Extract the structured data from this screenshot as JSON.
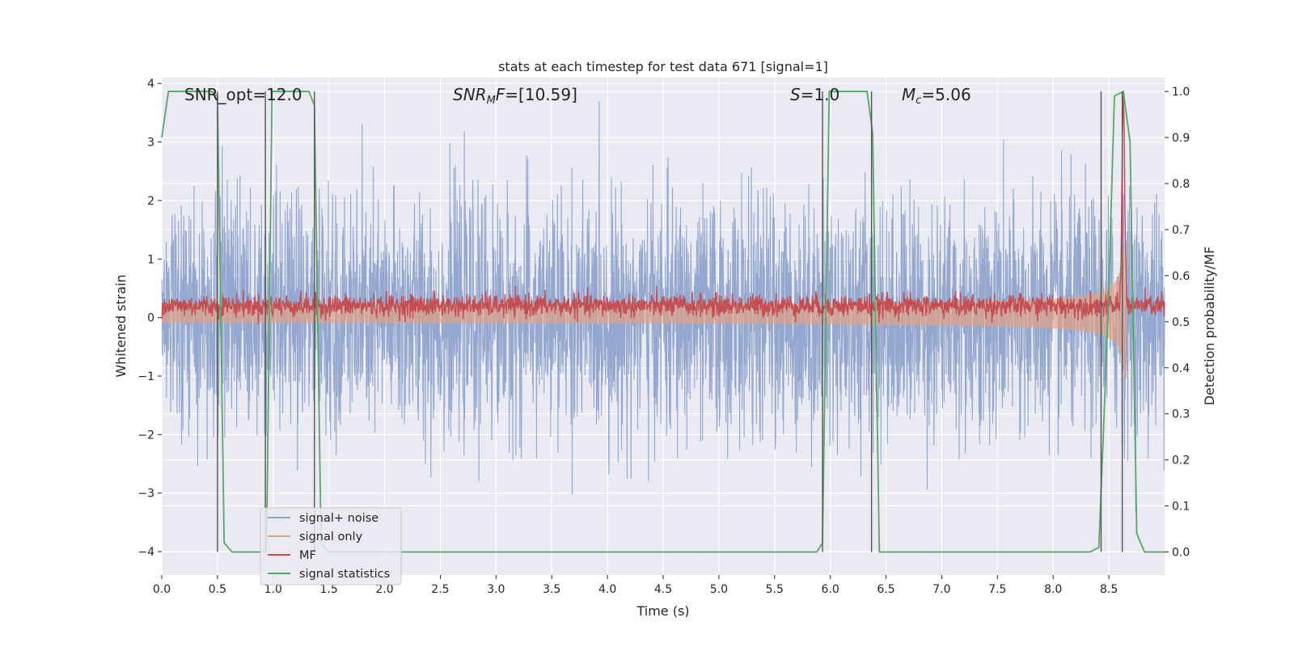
{
  "chart_data": {
    "type": "line",
    "title": "stats at each timestep for test data 671 [signal=1]",
    "xlabel": "Time (s)",
    "ylabel_left": "Whitened strain",
    "ylabel_right": "Detection probability/MF",
    "xlim": [
      0.0,
      9.0
    ],
    "ylim_left": [
      -4.4,
      4.1
    ],
    "ylim_right": [
      -0.05,
      1.03
    ],
    "x_ticks": [
      "0.0",
      "0.5",
      "1.0",
      "1.5",
      "2.0",
      "2.5",
      "3.0",
      "3.5",
      "4.0",
      "4.5",
      "5.0",
      "5.5",
      "6.0",
      "6.5",
      "7.0",
      "7.5",
      "8.0",
      "8.5"
    ],
    "y_ticks_left": [
      "4",
      "3",
      "2",
      "1",
      "0",
      "−1",
      "−2",
      "−3",
      "−4"
    ],
    "y_ticks_right": [
      "1.0",
      "0.9",
      "0.8",
      "0.7",
      "0.6",
      "0.5",
      "0.4",
      "0.3",
      "0.2",
      "0.1",
      "0.0"
    ],
    "annotations": {
      "snr_opt": "SNR_opt=12.0",
      "snr_mf_label": "SNR",
      "snr_mf_sub": "M",
      "snr_mf_f": "F",
      "snr_mf_value": "=[10.59]",
      "s_label": "S",
      "s_value": "=1.0",
      "mc_label": "M",
      "mc_sub": "c",
      "mc_value": "=5.06"
    },
    "vertical_lines": [
      0.5,
      0.93,
      1.37,
      5.93,
      6.37,
      8.43,
      8.62
    ],
    "series": [
      {
        "name": "signal+ noise",
        "color": "#8fa4cc",
        "description": "whitened noise, amplitude ~±2.5",
        "noise_std": 1.0
      },
      {
        "name": "signal only",
        "color": "#e8a080",
        "description": "chirp, amplitude grows to ~1.2 near 8.6 s"
      },
      {
        "name": "MF",
        "color": "#c44e52",
        "description": "matched filter output near 0.1, peak ~1.0 at 8.63 s"
      },
      {
        "name": "signal statistics",
        "color": "#55a868",
        "x": [
          0.0,
          0.06,
          0.45,
          0.5,
          0.56,
          0.63,
          0.94,
          0.99,
          1.32,
          1.37,
          1.43,
          1.5,
          5.88,
          5.93,
          5.99,
          6.33,
          6.38,
          6.44,
          8.33,
          8.41,
          8.49,
          8.55,
          8.63,
          8.69,
          8.75,
          8.82,
          9.0
        ],
        "y": [
          0.9,
          1.0,
          1.0,
          0.99,
          0.02,
          0.0,
          0.0,
          1.0,
          1.0,
          0.97,
          0.02,
          0.0,
          0.0,
          0.02,
          1.0,
          1.0,
          0.91,
          0.0,
          0.0,
          0.01,
          0.5,
          0.99,
          1.0,
          0.89,
          0.04,
          0.0,
          0.0
        ]
      }
    ],
    "legend": {
      "placement": "lower-left",
      "entries": [
        {
          "label": "signal+ noise",
          "color": "#8fa4cc"
        },
        {
          "label": "signal only",
          "color": "#e8a080"
        },
        {
          "label": "MF",
          "color": "#c44e52"
        },
        {
          "label": "signal statistics",
          "color": "#55a868"
        }
      ]
    },
    "style": {
      "background": "#eaeaf2",
      "grid_color": "#ffffff",
      "vline_color": "#555555"
    }
  }
}
